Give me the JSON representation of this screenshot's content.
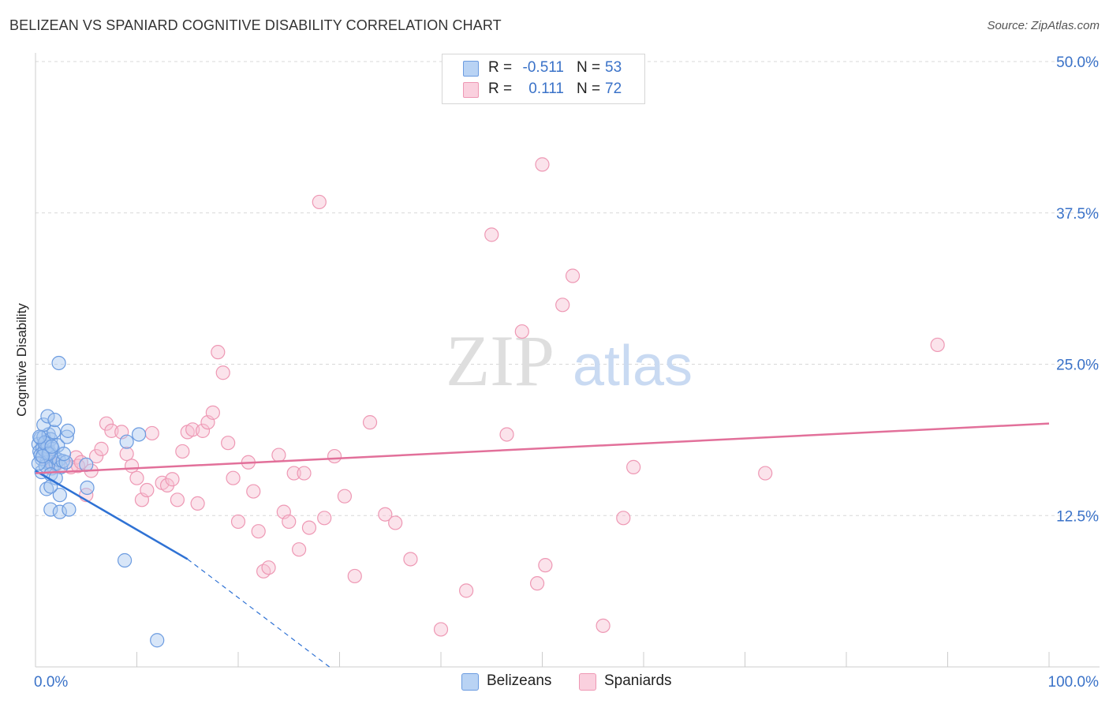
{
  "header": {
    "title": "BELIZEAN VS SPANIARD COGNITIVE DISABILITY CORRELATION CHART",
    "source": "Source: ZipAtlas.com"
  },
  "watermark": {
    "zip": "ZIP",
    "atlas": "atlas"
  },
  "legend": {
    "series1": {
      "r_label": "R =",
      "r_value": "-0.511",
      "n_label": "N =",
      "n_value": "53"
    },
    "series2": {
      "r_label": "R =",
      "r_value": "0.111",
      "n_label": "N =",
      "n_value": "72"
    }
  },
  "colors": {
    "blue_fill": "#a9c8f0",
    "blue_stroke": "#6b9be0",
    "blue_line": "#2f72d4",
    "pink_fill": "#f7c1d2",
    "pink_stroke": "#ee98b4",
    "pink_line": "#e2709a",
    "axis_text": "#3a72c8",
    "grid": "#d8d8d8"
  },
  "chart_data": {
    "type": "scatter",
    "title": "BELIZEAN VS SPANIARD COGNITIVE DISABILITY CORRELATION CHART",
    "xlabel": "",
    "ylabel": "Cognitive Disability",
    "xlim": [
      0,
      100
    ],
    "ylim": [
      0,
      50
    ],
    "x_tick_labels": [
      "0.0%",
      "100.0%"
    ],
    "y_ticks": [
      12.5,
      25.0,
      37.5,
      50.0
    ],
    "y_tick_labels": [
      "12.5%",
      "25.0%",
      "37.5%",
      "50.0%"
    ],
    "grid": true,
    "legend_position": "top-center",
    "series": [
      {
        "name": "Belizeans",
        "color": "#6b9be0",
        "trend": {
          "x": [
            0.0,
            15.0
          ],
          "y": [
            16.2,
            8.9
          ],
          "dashed_extension": {
            "x": [
              15.0,
              29.0
            ],
            "y": [
              8.9,
              0.0
            ]
          }
        },
        "points": [
          [
            0.3,
            18.4
          ],
          [
            0.4,
            17.8
          ],
          [
            0.5,
            18.9
          ],
          [
            0.6,
            17.2
          ],
          [
            0.7,
            18.1
          ],
          [
            0.8,
            19.0
          ],
          [
            0.5,
            17.5
          ],
          [
            0.9,
            17.9
          ],
          [
            1.0,
            18.6
          ],
          [
            1.1,
            16.9
          ],
          [
            1.2,
            18.2
          ],
          [
            1.3,
            19.2
          ],
          [
            1.4,
            17.7
          ],
          [
            1.5,
            18.8
          ],
          [
            1.6,
            16.4
          ],
          [
            1.7,
            18.0
          ],
          [
            1.8,
            19.4
          ],
          [
            1.9,
            17.3
          ],
          [
            2.0,
            16.8
          ],
          [
            2.2,
            18.3
          ],
          [
            2.3,
            17.1
          ],
          [
            2.5,
            16.5
          ],
          [
            2.7,
            17.0
          ],
          [
            3.0,
            16.9
          ],
          [
            3.1,
            19.0
          ],
          [
            3.2,
            19.5
          ],
          [
            0.8,
            20.0
          ],
          [
            1.2,
            20.7
          ],
          [
            1.9,
            20.4
          ],
          [
            0.6,
            16.1
          ],
          [
            1.0,
            16.6
          ],
          [
            1.5,
            15.9
          ],
          [
            2.0,
            15.6
          ],
          [
            2.4,
            14.2
          ],
          [
            1.1,
            14.7
          ],
          [
            1.5,
            14.9
          ],
          [
            1.5,
            13.0
          ],
          [
            2.4,
            12.8
          ],
          [
            3.3,
            13.0
          ],
          [
            2.3,
            25.1
          ],
          [
            5.1,
            14.8
          ],
          [
            5.0,
            16.7
          ],
          [
            9.0,
            18.6
          ],
          [
            10.2,
            19.2
          ],
          [
            8.8,
            8.8
          ],
          [
            12.0,
            2.2
          ],
          [
            0.3,
            16.8
          ],
          [
            0.9,
            18.5
          ],
          [
            1.3,
            17.6
          ],
          [
            1.6,
            18.2
          ],
          [
            0.4,
            19.0
          ],
          [
            2.8,
            17.6
          ],
          [
            0.7,
            17.4
          ]
        ]
      },
      {
        "name": "Spaniards",
        "color": "#ee98b4",
        "trend": {
          "x": [
            0.0,
            100.0
          ],
          "y": [
            16.0,
            20.1
          ]
        },
        "points": [
          [
            1.0,
            17.2
          ],
          [
            1.5,
            17.0
          ],
          [
            2.0,
            16.7
          ],
          [
            3.5,
            16.5
          ],
          [
            4.0,
            17.3
          ],
          [
            4.2,
            16.6
          ],
          [
            4.5,
            16.9
          ],
          [
            5.5,
            16.2
          ],
          [
            6.0,
            17.4
          ],
          [
            6.5,
            18.0
          ],
          [
            7.0,
            20.1
          ],
          [
            7.5,
            19.5
          ],
          [
            8.5,
            19.4
          ],
          [
            9.0,
            17.6
          ],
          [
            9.5,
            16.6
          ],
          [
            10.0,
            15.6
          ],
          [
            10.5,
            13.8
          ],
          [
            11.0,
            14.6
          ],
          [
            11.5,
            19.3
          ],
          [
            12.5,
            15.2
          ],
          [
            13.0,
            15.0
          ],
          [
            13.5,
            15.5
          ],
          [
            14.0,
            13.8
          ],
          [
            14.5,
            17.8
          ],
          [
            15.0,
            19.4
          ],
          [
            15.5,
            19.6
          ],
          [
            16.0,
            13.5
          ],
          [
            16.5,
            19.5
          ],
          [
            17.0,
            20.2
          ],
          [
            17.5,
            21.0
          ],
          [
            18.0,
            26.0
          ],
          [
            18.5,
            24.3
          ],
          [
            19.0,
            18.5
          ],
          [
            19.5,
            15.6
          ],
          [
            20.0,
            12.0
          ],
          [
            21.0,
            16.9
          ],
          [
            21.5,
            14.5
          ],
          [
            22.0,
            11.2
          ],
          [
            22.5,
            7.9
          ],
          [
            23.0,
            8.2
          ],
          [
            24.0,
            17.5
          ],
          [
            24.5,
            12.8
          ],
          [
            25.0,
            12.0
          ],
          [
            25.5,
            16.0
          ],
          [
            26.0,
            9.7
          ],
          [
            26.5,
            16.0
          ],
          [
            27.0,
            11.5
          ],
          [
            28.0,
            38.4
          ],
          [
            28.5,
            12.3
          ],
          [
            29.5,
            17.4
          ],
          [
            30.5,
            14.1
          ],
          [
            31.5,
            7.5
          ],
          [
            33.0,
            20.2
          ],
          [
            34.5,
            12.6
          ],
          [
            35.5,
            11.9
          ],
          [
            37.0,
            8.9
          ],
          [
            40.0,
            3.1
          ],
          [
            42.5,
            6.3
          ],
          [
            45.0,
            35.7
          ],
          [
            46.5,
            19.2
          ],
          [
            48.0,
            27.7
          ],
          [
            49.5,
            6.9
          ],
          [
            50.0,
            41.5
          ],
          [
            50.3,
            8.4
          ],
          [
            52.0,
            29.9
          ],
          [
            53.0,
            32.3
          ],
          [
            56.0,
            3.4
          ],
          [
            58.0,
            12.3
          ],
          [
            59.0,
            16.5
          ],
          [
            72.0,
            16.0
          ],
          [
            89.0,
            26.6
          ],
          [
            5.0,
            14.2
          ]
        ]
      }
    ]
  }
}
